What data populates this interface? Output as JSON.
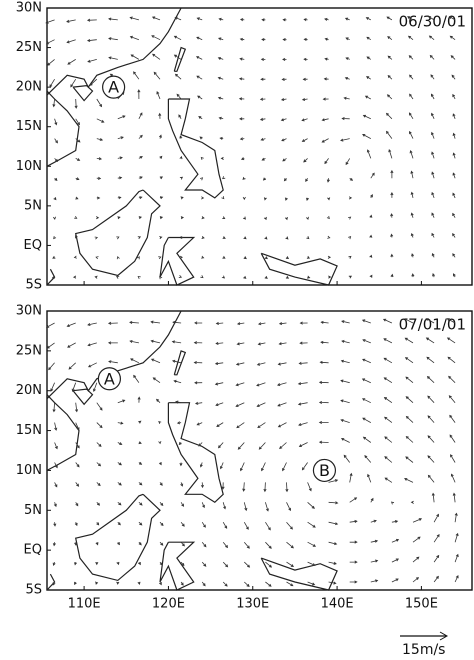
{
  "panels": [
    {
      "date": "06/30/01",
      "markers": [
        "A"
      ]
    },
    {
      "date": "07/01/01",
      "markers": [
        "A",
        "B"
      ]
    }
  ],
  "lat_labels": [
    "30N",
    "25N",
    "20N",
    "15N",
    "10N",
    "5N",
    "EQ",
    "5S"
  ],
  "lon_labels": [
    "110E",
    "120E",
    "130E",
    "140E",
    "150E"
  ],
  "scale_label": "15m/s"
}
